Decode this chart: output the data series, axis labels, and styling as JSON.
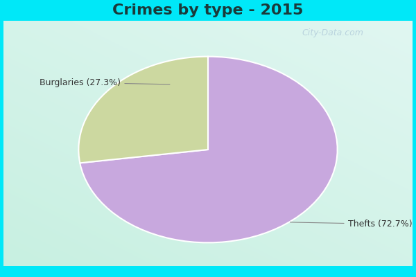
{
  "title": "Crimes by type - 2015",
  "slices": [
    72.7,
    27.3
  ],
  "labels": [
    "Thefts (72.7%)",
    "Burglaries (27.3%)"
  ],
  "colors": [
    "#c8a8de",
    "#ccd8a0"
  ],
  "title_fontsize": 16,
  "label_fontsize": 9,
  "startangle": 90,
  "watermark": "City-Data.com",
  "bg_colors": [
    "#c8f0e0",
    "#e0f8f0",
    "#f0fff8"
  ],
  "cyan_color": "#00e8f8",
  "title_color": "#1a3a3a",
  "label_color": "#333333",
  "cyan_bar_height": 0.075
}
